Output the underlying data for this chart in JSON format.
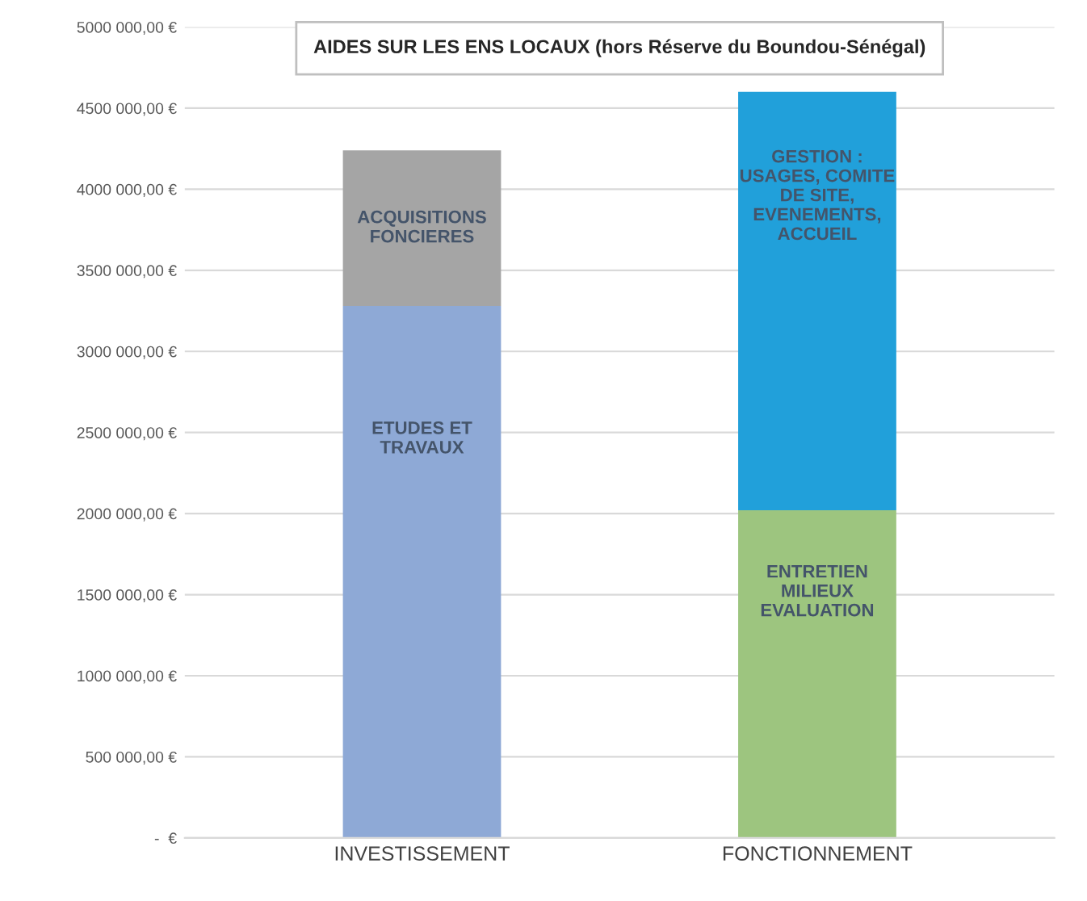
{
  "chart_data": {
    "type": "bar",
    "title": "AIDES SUR LES ENS LOCAUX (hors Réserve du Boundou-Sénégal)",
    "categories": [
      "INVESTISSEMENT",
      "FONCTIONNEMENT"
    ],
    "stacked": true,
    "series": [
      {
        "name": "ETUDES ET\nTRAVAUX",
        "color": "#8ea9d6",
        "values": [
          3280000,
          null
        ]
      },
      {
        "name": "ACQUISITIONS\nFONCIERES",
        "color": "#a5a5a5",
        "values": [
          960000,
          null
        ]
      },
      {
        "name": "ENTRETIEN\nMILIEUX\nEVALUATION",
        "color": "#9dc57f",
        "values": [
          null,
          2020000
        ]
      },
      {
        "name": "GESTION :\nUSAGES, COMITE\nDE SITE,\nEVENEMENTS,\nACCUEIL",
        "color": "#21a0da",
        "values": [
          null,
          2580000
        ]
      }
    ],
    "ylim": [
      0,
      5000000
    ],
    "yticks": [
      {
        "value": 0,
        "label": "-  €"
      },
      {
        "value": 500000,
        "label": "500 000,00 €"
      },
      {
        "value": 1000000,
        "label": "1000 000,00 €"
      },
      {
        "value": 1500000,
        "label": "1500 000,00 €"
      },
      {
        "value": 2000000,
        "label": "2000 000,00 €"
      },
      {
        "value": 2500000,
        "label": "2500 000,00 €"
      },
      {
        "value": 3000000,
        "label": "3000 000,00 €"
      },
      {
        "value": 3500000,
        "label": "3500 000,00 €"
      },
      {
        "value": 4000000,
        "label": "4000 000,00 €"
      },
      {
        "value": 4500000,
        "label": "4500 000,00 €"
      },
      {
        "value": 5000000,
        "label": "5000 000,00 €"
      }
    ],
    "grid": "y"
  }
}
